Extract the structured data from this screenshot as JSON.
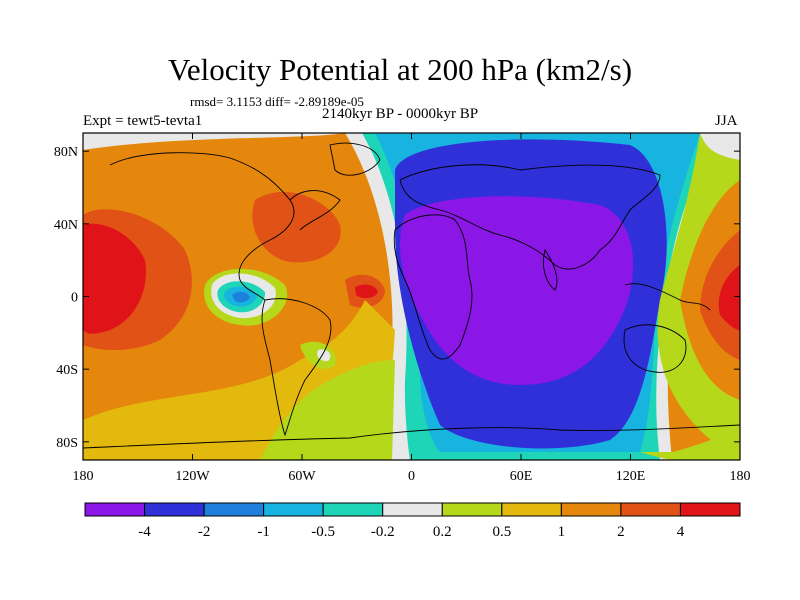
{
  "title": "Velocity Potential at 200 hPa (km2/s)",
  "stats": "rmsd= 3.1153  diff= -2.89189e-05",
  "period": "2140kyr BP - 0000kyr BP",
  "experiment": "Expt = tewt5-tevta1",
  "season": "JJA",
  "lat_ticks": [
    {
      "label": "80N",
      "value": 80
    },
    {
      "label": "40N",
      "value": 40
    },
    {
      "label": "0",
      "value": 0
    },
    {
      "label": "40S",
      "value": -40
    },
    {
      "label": "80S",
      "value": -80
    }
  ],
  "lon_ticks": [
    {
      "label": "180",
      "value": -180
    },
    {
      "label": "120W",
      "value": -120
    },
    {
      "label": "60W",
      "value": -60
    },
    {
      "label": "0",
      "value": 0
    },
    {
      "label": "60E",
      "value": 60
    },
    {
      "label": "120E",
      "value": 120
    },
    {
      "label": "180",
      "value": 180
    }
  ],
  "colorbar": {
    "colors": [
      "#8A17E6",
      "#3030D8",
      "#1F7FDC",
      "#18B4E0",
      "#1ED5B8",
      "#E8E8E8",
      "#B5D81A",
      "#E2B90C",
      "#E6870D",
      "#E05216",
      "#E01418"
    ],
    "labels": [
      "-4",
      "-2",
      "-1",
      "-0.5",
      "-0.2",
      "0.2",
      "0.5",
      "1",
      "2",
      "4"
    ]
  }
}
